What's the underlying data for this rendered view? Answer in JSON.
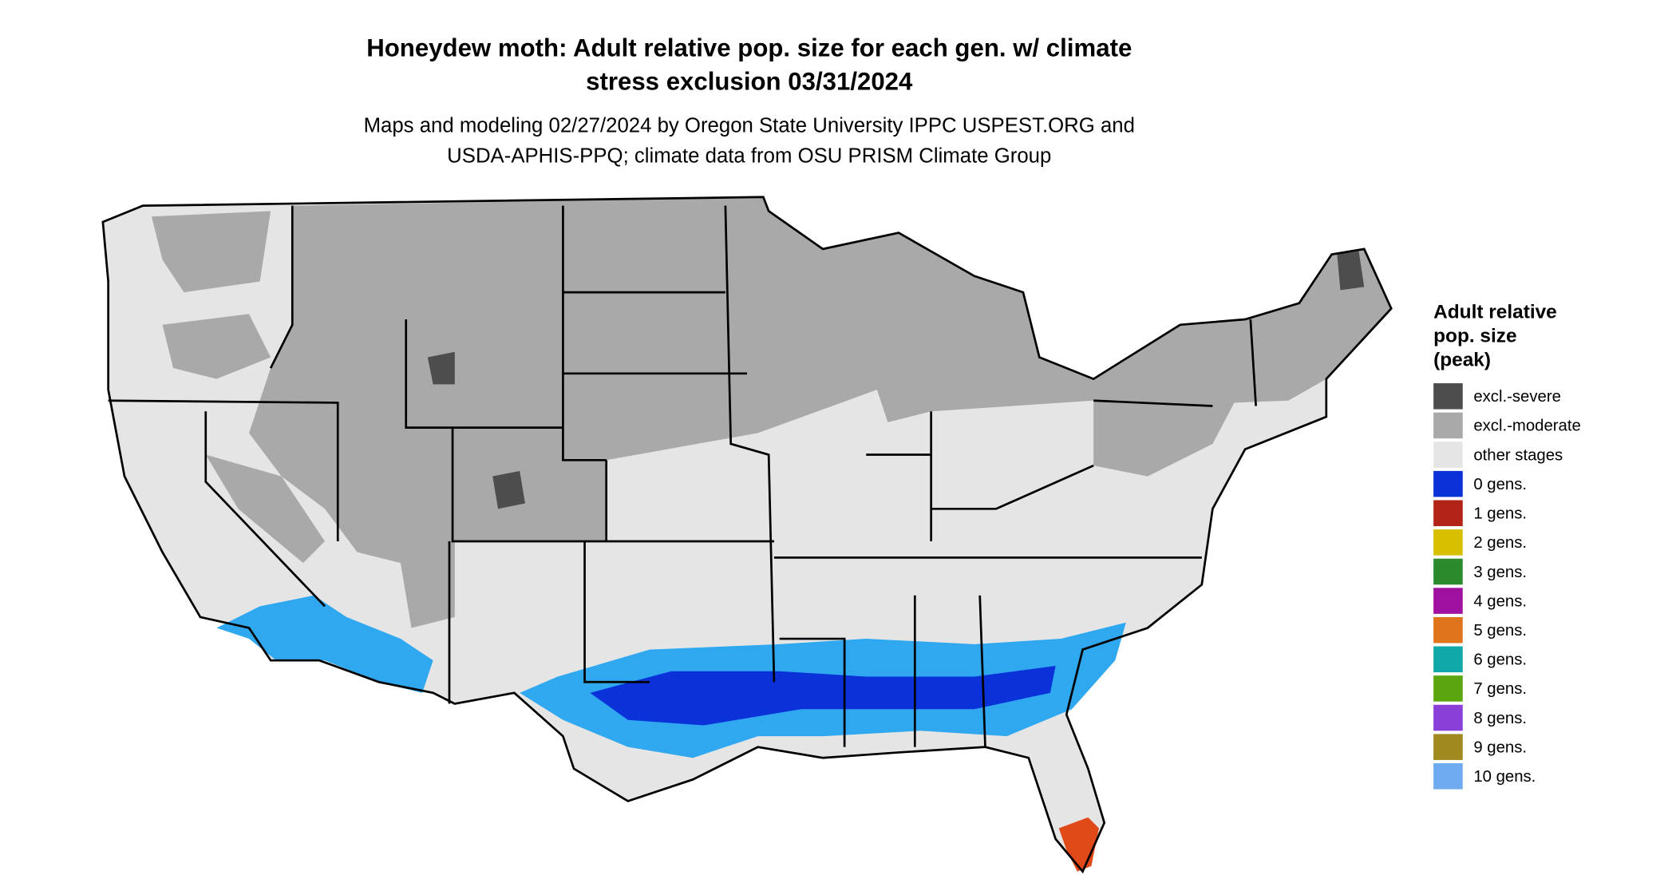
{
  "title": [
    "Honeydew moth: Adult relative pop. size for each gen. w/ climate",
    "stress exclusion 03/31/2024"
  ],
  "subtitle": [
    "Maps and modeling 02/27/2024 by Oregon State University IPPC USPEST.ORG and",
    "USDA-APHIS-PPQ; climate data from OSU PRISM Climate Group"
  ],
  "legend": {
    "title": [
      "Adult relative",
      "pop. size",
      "(peak)"
    ],
    "items": [
      {
        "label": "excl.-severe",
        "color": "#4d4d4d"
      },
      {
        "label": "excl.-moderate",
        "color": "#a9a9a9"
      },
      {
        "label": "other stages",
        "color": "#e5e5e5"
      },
      {
        "label": "0 gens.",
        "color": "#0a32d8"
      },
      {
        "label": "1 gens.",
        "color": "#b22418"
      },
      {
        "label": "2 gens.",
        "color": "#d8c000"
      },
      {
        "label": "3 gens.",
        "color": "#2b8a2b"
      },
      {
        "label": "4 gens.",
        "color": "#a0109e"
      },
      {
        "label": "5 gens.",
        "color": "#e0741a"
      },
      {
        "label": "6 gens.",
        "color": "#10a8a8"
      },
      {
        "label": "7 gens.",
        "color": "#5aa510"
      },
      {
        "label": "8 gens.",
        "color": "#8a40d8"
      },
      {
        "label": "9 gens.",
        "color": "#a08a20"
      },
      {
        "label": "10 gens.",
        "color": "#6eaaf0"
      }
    ]
  }
}
